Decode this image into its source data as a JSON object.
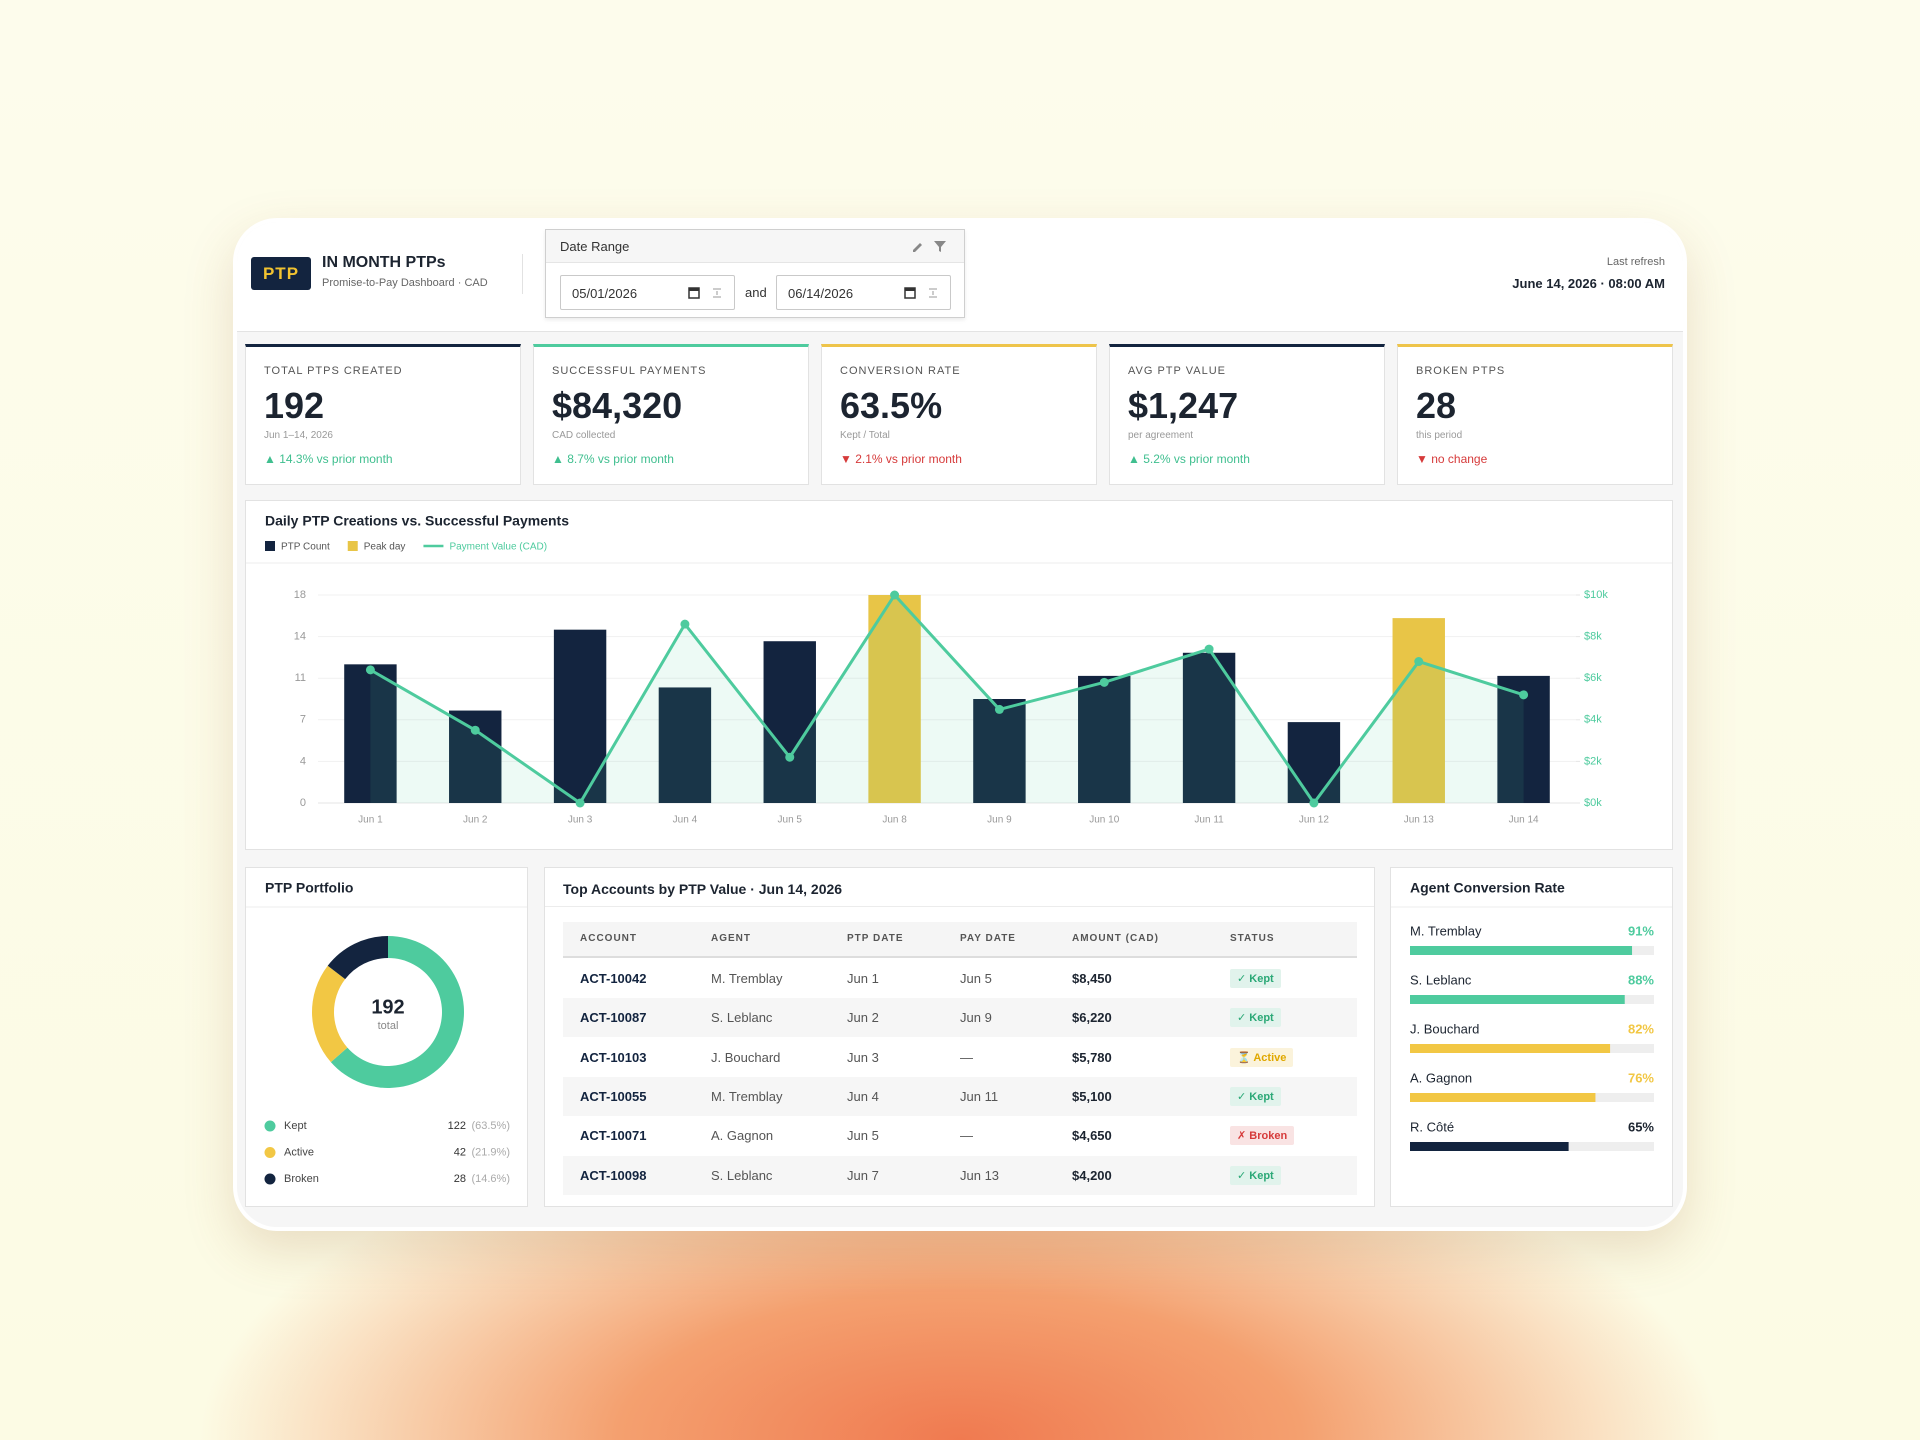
{
  "header": {
    "badge": "PTP",
    "title": "IN MONTH PTPs",
    "subtitle": "Promise-to-Pay Dashboard · CAD",
    "date_range": {
      "label": "Date Range",
      "from": "05/01/2026",
      "joiner": "and",
      "to": "06/14/2026"
    },
    "refresh_label": "Last refresh",
    "refresh_time": "June 14, 2026 · 08:00 AM"
  },
  "kpis": [
    {
      "label": "TOTAL PTPS CREATED",
      "value": "192",
      "note": "Jun 1–14, 2026",
      "delta": "▲ 14.3% vs prior month",
      "delta_color": "#3fbf8f",
      "accent": "#13243f"
    },
    {
      "label": "SUCCESSFUL PAYMENTS",
      "value": "$84,320",
      "note": "CAD collected",
      "delta": "▲ 8.7% vs prior month",
      "delta_color": "#3fbf8f",
      "accent": "#4ecb9e"
    },
    {
      "label": "CONVERSION RATE",
      "value": "63.5%",
      "note": "Kept / Total",
      "delta": "▼ 2.1% vs prior month",
      "delta_color": "#d63a3a",
      "accent": "#eec44a"
    },
    {
      "label": "AVG PTP VALUE",
      "value": "$1,247",
      "note": "per agreement",
      "delta": "▲ 5.2% vs prior month",
      "delta_color": "#3fbf8f",
      "accent": "#13243f"
    },
    {
      "label": "BROKEN PTPS",
      "value": "28",
      "note": "this period",
      "delta": "▼ no change",
      "delta_color": "#d63a3a",
      "accent": "#eec44a"
    }
  ],
  "chart_data": [
    {
      "type": "bar",
      "title": "Daily PTP Creations vs. Successful Payments",
      "categories": [
        "Jun 1",
        "Jun 2",
        "Jun 3",
        "Jun 4",
        "Jun 5",
        "Jun 8",
        "Jun 9",
        "Jun 10",
        "Jun 11",
        "Jun 12",
        "Jun 13",
        "Jun 14"
      ],
      "series": [
        {
          "name": "PTP Count",
          "color": "#13243f",
          "values": [
            12,
            8,
            15,
            10,
            14,
            null,
            9,
            11,
            13,
            7,
            null,
            11
          ]
        },
        {
          "name": "Peak day",
          "color": "#e8c547",
          "values": [
            null,
            null,
            null,
            null,
            null,
            18,
            null,
            null,
            null,
            null,
            16,
            null
          ]
        },
        {
          "name": "Payment Value (CAD)",
          "type": "line",
          "axis": "y2",
          "color": "#4ecb9e",
          "values": [
            6400,
            3500,
            0,
            8600,
            2200,
            10000,
            4500,
            5800,
            7400,
            0,
            6800,
            5200
          ]
        }
      ],
      "ylim": [
        0,
        18
      ],
      "yticks": [
        0,
        {
          "value": 3.6,
          "label": "4"
        },
        {
          "value": 7.2,
          "label": "7"
        },
        {
          "value": 10.8,
          "label": "11"
        },
        {
          "value": 14.4,
          "label": "14"
        },
        18
      ],
      "y2lim": [
        0,
        10000
      ],
      "y2ticks": [
        {
          "value": 0,
          "label": "$0k"
        },
        {
          "value": 2000,
          "label": "$2k"
        },
        {
          "value": 4000,
          "label": "$4k"
        },
        {
          "value": 6000,
          "label": "$6k"
        },
        {
          "value": 8000,
          "label": "$8k"
        },
        {
          "value": 10000,
          "label": "$10k"
        }
      ],
      "grid": true
    },
    {
      "type": "pie",
      "donut": true,
      "title": "PTP Portfolio",
      "categories": [
        "Kept",
        "Active",
        "Broken"
      ],
      "values": [
        122,
        42,
        28
      ],
      "share_labels": [
        "(63.5%)",
        "(21.9%)",
        "(14.6%)"
      ],
      "colors": [
        "#4ecb9e",
        "#f2c744",
        "#13243f"
      ],
      "center_value": 192,
      "center_label": "total"
    },
    {
      "type": "hbar",
      "title": "Agent Conversion Rate",
      "categories": [
        "M. Tremblay",
        "S. Leblanc",
        "J. Bouchard",
        "A. Gagnon",
        "R. Côté"
      ],
      "values": [
        91,
        88,
        82,
        76,
        65
      ],
      "value_labels": [
        "91%",
        "88%",
        "82%",
        "76%",
        "65%"
      ],
      "colors": [
        "#4ecb9e",
        "#4ecb9e",
        "#f2c744",
        "#f2c744",
        "#13243f"
      ],
      "xlim": [
        0,
        100
      ]
    }
  ],
  "table": {
    "title": "Top Accounts by PTP Value · Jun 14, 2026",
    "columns": [
      "ACCOUNT",
      "AGENT",
      "PTP DATE",
      "PAY DATE",
      "AMOUNT (CAD)",
      "STATUS"
    ],
    "rows": [
      [
        "ACT-10042",
        "M. Tremblay",
        "Jun 1",
        "Jun 5",
        "$8,450",
        "✓ Kept"
      ],
      [
        "ACT-10087",
        "S. Leblanc",
        "Jun 2",
        "Jun 9",
        "$6,220",
        "✓ Kept"
      ],
      [
        "ACT-10103",
        "J. Bouchard",
        "Jun 3",
        "—",
        "$5,780",
        "⏳ Active"
      ],
      [
        "ACT-10055",
        "M. Tremblay",
        "Jun 4",
        "Jun 11",
        "$5,100",
        "✓ Kept"
      ],
      [
        "ACT-10071",
        "A. Gagnon",
        "Jun 5",
        "—",
        "$4,650",
        "✗ Broken"
      ],
      [
        "ACT-10098",
        "S. Leblanc",
        "Jun 7",
        "Jun 13",
        "$4,200",
        "✓ Kept"
      ]
    ],
    "status_colors": [
      "#2aa876",
      "#2aa876",
      "#e0a800",
      "#2aa876",
      "#d63a3a",
      "#2aa876"
    ]
  }
}
